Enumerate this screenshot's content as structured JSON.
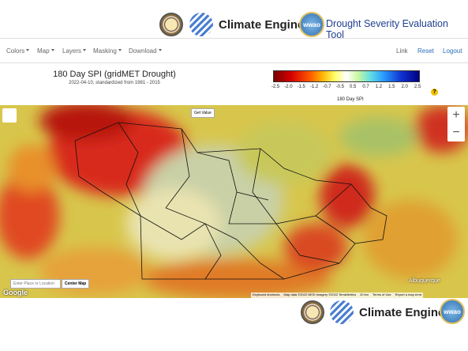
{
  "header": {
    "brand": "Climate Engine",
    "logo_text": "wwao",
    "app_title": "Drought Severity Evaluation Tool"
  },
  "nav": {
    "menus": [
      "Colors",
      "Map",
      "Layers",
      "Masking",
      "Download"
    ],
    "links": [
      "Link",
      "Reset",
      "Logout"
    ]
  },
  "map_panel": {
    "title": "180 Day SPI (gridMET Drought)",
    "subtitle": "2022-04-10, standardized from 1981 - 2015",
    "legend": {
      "labels": [
        "-2.5",
        "-2.0",
        "-1.5",
        "-1.2",
        "-0.7",
        "-0.5",
        "0.5",
        "0.7",
        "1.2",
        "1.5",
        "2.0",
        "2.5"
      ],
      "title": "180 Day SPI",
      "help": "?"
    }
  },
  "map": {
    "get_value": "Get Value",
    "zoom_in": "+",
    "zoom_out": "−",
    "search_placeholder": "Enter Place or Location",
    "center_button": "Center Map",
    "place_labels": [
      "Albuquerque"
    ],
    "google": "Google",
    "attribution": [
      "Keyboard shortcuts",
      "Map data ©2022 NESI Imagery ©2022 TerraMetrics",
      "20 km",
      "Terms of Use",
      "Report a map error"
    ]
  },
  "footer": {
    "brand": "Climate Engine",
    "logo_text": "wwao"
  }
}
